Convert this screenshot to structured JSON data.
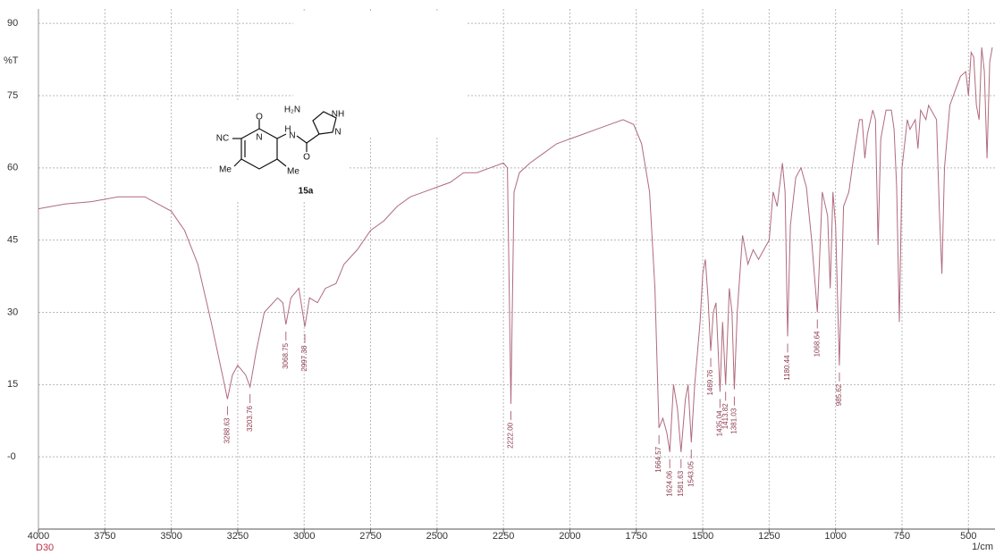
{
  "chart_data": {
    "type": "line",
    "y_label": "%T",
    "x_label": "1/cm",
    "sample": "D30",
    "xlim": [
      4000,
      400
    ],
    "ylim": [
      -15,
      93
    ],
    "xticks": [
      4000,
      3750,
      3500,
      3250,
      3000,
      2750,
      2500,
      2250,
      2000,
      1750,
      1500,
      1250,
      1000,
      750,
      500
    ],
    "yticks": [
      {
        "value": 0,
        "label": "-0"
      },
      15,
      30,
      45,
      60,
      75,
      90
    ],
    "grid": true,
    "series": [
      {
        "color": "#b06a7e",
        "x": [
          4000,
          3900,
          3800,
          3700,
          3600,
          3500,
          3450,
          3400,
          3350,
          3300,
          3288.63,
          3270,
          3250,
          3220,
          3203.76,
          3180,
          3150,
          3100,
          3080,
          3068.75,
          3050,
          3020,
          2997.38,
          2980,
          2950,
          2920,
          2880,
          2850,
          2800,
          2750,
          2700,
          2650,
          2600,
          2550,
          2500,
          2450,
          2400,
          2350,
          2300,
          2250,
          2235,
          2222,
          2210,
          2190,
          2150,
          2100,
          2050,
          2000,
          1950,
          1900,
          1850,
          1800,
          1760,
          1730,
          1700,
          1680,
          1664.57,
          1650,
          1635,
          1624.06,
          1610,
          1595,
          1581.63,
          1565,
          1555,
          1543.05,
          1530,
          1510,
          1500,
          1490,
          1480,
          1469.76,
          1460,
          1450,
          1435.04,
          1425,
          1413.82,
          1400,
          1390,
          1381.03,
          1370,
          1350,
          1330,
          1310,
          1290,
          1270,
          1250,
          1235,
          1220,
          1200,
          1190,
          1180.44,
          1170,
          1150,
          1130,
          1110,
          1090,
          1068.64,
          1050,
          1030,
          1020,
          1010,
          1000,
          985.62,
          970,
          950,
          930,
          910,
          900,
          890,
          880,
          860,
          850,
          840,
          830,
          810,
          790,
          780,
          770,
          760,
          750,
          730,
          720,
          700,
          690,
          680,
          660,
          650,
          640,
          620,
          610,
          600,
          590,
          570,
          550,
          530,
          510,
          500,
          490,
          480,
          470,
          460,
          450,
          440,
          430,
          420,
          410
        ],
        "values": [
          51.5,
          52.5,
          53,
          54,
          54,
          51,
          47,
          40,
          28,
          15,
          12,
          17,
          19,
          17,
          14.5,
          22,
          30,
          33,
          32,
          27.5,
          33,
          35,
          27,
          33,
          32,
          35,
          36,
          40,
          43,
          47,
          49,
          52,
          54,
          55,
          56,
          57,
          59,
          59,
          60,
          61,
          60,
          11,
          55,
          59,
          61,
          63,
          65,
          66,
          67,
          68,
          69,
          70,
          69,
          65,
          55,
          35,
          6,
          8,
          5,
          1,
          15,
          10,
          1,
          12,
          15,
          3,
          15,
          28,
          38,
          41,
          33,
          22,
          30,
          32,
          13.5,
          28,
          15,
          35,
          30,
          14,
          30,
          46,
          40,
          43,
          41,
          43,
          45,
          55,
          52,
          61,
          55,
          25,
          48,
          58,
          60,
          56,
          45,
          30,
          55,
          50,
          35,
          55,
          48,
          19,
          52,
          55,
          63,
          70,
          70,
          62,
          67,
          72,
          70,
          44,
          66,
          72,
          72,
          68,
          56,
          28,
          60,
          70,
          68,
          70,
          64,
          72,
          70,
          73,
          72,
          70,
          52,
          38,
          60,
          73,
          76,
          79,
          80,
          75,
          84,
          83,
          73,
          70,
          85,
          80,
          62,
          82,
          85
        ]
      }
    ],
    "peaks": [
      3288.63,
      3203.76,
      3068.75,
      2997.38,
      {
        "value": 2222,
        "label": "2222.00"
      },
      1664.57,
      1624.06,
      1581.63,
      1543.05,
      1469.76,
      1435.04,
      1413.82,
      1381.03,
      1180.44,
      1068.64,
      985.62
    ],
    "structure": {
      "compound": "15a",
      "labels": [
        "H₂N",
        "NH",
        "N",
        "O",
        "NC",
        "N",
        "H",
        "N",
        "O",
        "Me",
        "Me"
      ]
    }
  }
}
